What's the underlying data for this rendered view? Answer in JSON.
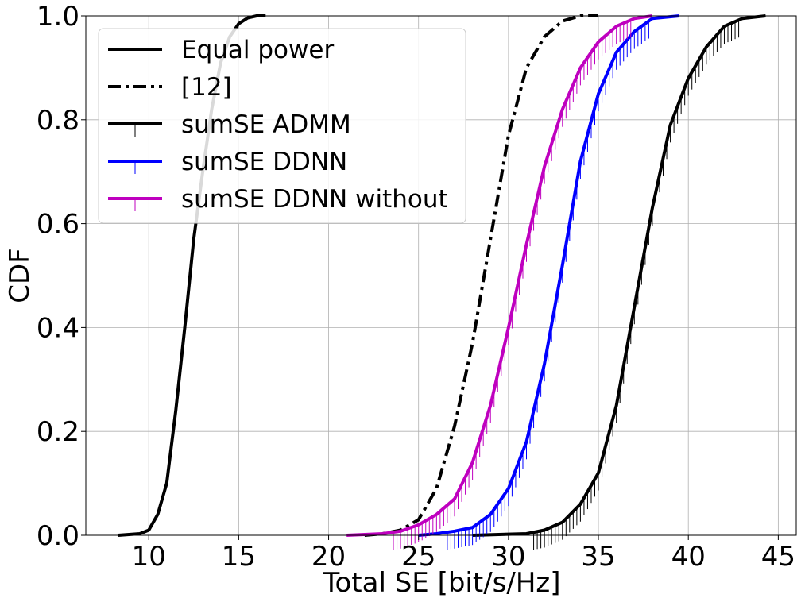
{
  "chart_data": {
    "type": "line",
    "title": "",
    "xlabel": "Total SE [bit/s/Hz]",
    "ylabel": "CDF",
    "xlim": [
      6.5,
      46
    ],
    "ylim": [
      0,
      1
    ],
    "xticks": [
      10,
      15,
      20,
      25,
      30,
      35,
      40,
      45
    ],
    "yticks": [
      0.0,
      0.2,
      0.4,
      0.6,
      0.8,
      1.0
    ],
    "xtick_labels": [
      "10",
      "15",
      "20",
      "25",
      "30",
      "35",
      "40",
      "45"
    ],
    "ytick_labels": [
      "0.0",
      "0.2",
      "0.4",
      "0.6",
      "0.8",
      "1.0"
    ],
    "grid": true,
    "legend_position": "top-left",
    "series": [
      {
        "name": "Equal power",
        "color": "#000000",
        "style": "solid",
        "marker": "none",
        "x": [
          8.3,
          9.5,
          10.0,
          10.5,
          11.0,
          11.5,
          12.0,
          12.5,
          13.0,
          13.5,
          14.0,
          14.5,
          15.0,
          15.5,
          16.0,
          16.5
        ],
        "y": [
          0.0,
          0.003,
          0.01,
          0.04,
          0.1,
          0.24,
          0.4,
          0.57,
          0.7,
          0.82,
          0.91,
          0.96,
          0.985,
          0.996,
          1.0,
          1.0
        ]
      },
      {
        "name": "[12]",
        "color": "#000000",
        "style": "dashdot",
        "marker": "none",
        "x": [
          22.0,
          23.0,
          24.0,
          25.0,
          26.0,
          27.0,
          28.0,
          29.0,
          30.0,
          31.0,
          32.0,
          33.0,
          34.0,
          35.0
        ],
        "y": [
          0.0,
          0.003,
          0.01,
          0.03,
          0.09,
          0.21,
          0.37,
          0.57,
          0.77,
          0.9,
          0.96,
          0.99,
          1.0,
          1.0
        ]
      },
      {
        "name": "sumSE ADMM",
        "color": "#000000",
        "style": "solid",
        "marker": "tick",
        "x": [
          28.0,
          31.0,
          32.0,
          33.0,
          34.0,
          35.0,
          36.0,
          37.0,
          38.0,
          39.0,
          40.0,
          41.0,
          42.0,
          43.0,
          44.3
        ],
        "y": [
          0.0,
          0.003,
          0.01,
          0.025,
          0.06,
          0.12,
          0.25,
          0.44,
          0.63,
          0.79,
          0.88,
          0.94,
          0.98,
          0.995,
          1.0
        ]
      },
      {
        "name": "sumSE DDNN",
        "color": "#0000ff",
        "style": "solid",
        "marker": "tick",
        "x": [
          25.0,
          26.0,
          27.0,
          28.0,
          29.0,
          30.0,
          31.0,
          32.0,
          33.0,
          34.0,
          35.0,
          36.0,
          37.0,
          38.0,
          39.5
        ],
        "y": [
          0.0,
          0.003,
          0.008,
          0.015,
          0.04,
          0.09,
          0.18,
          0.33,
          0.52,
          0.72,
          0.85,
          0.93,
          0.97,
          0.995,
          1.0
        ]
      },
      {
        "name": "sumSE DDNN without",
        "color": "#bf00bf",
        "style": "solid",
        "marker": "tick",
        "x": [
          21.0,
          23.0,
          24.0,
          25.0,
          26.0,
          27.0,
          28.0,
          29.0,
          30.0,
          31.0,
          32.0,
          33.0,
          34.0,
          35.0,
          36.0,
          37.0,
          38.0
        ],
        "y": [
          0.0,
          0.003,
          0.008,
          0.02,
          0.04,
          0.07,
          0.14,
          0.25,
          0.4,
          0.56,
          0.71,
          0.82,
          0.9,
          0.95,
          0.98,
          0.995,
          1.0
        ]
      }
    ]
  }
}
